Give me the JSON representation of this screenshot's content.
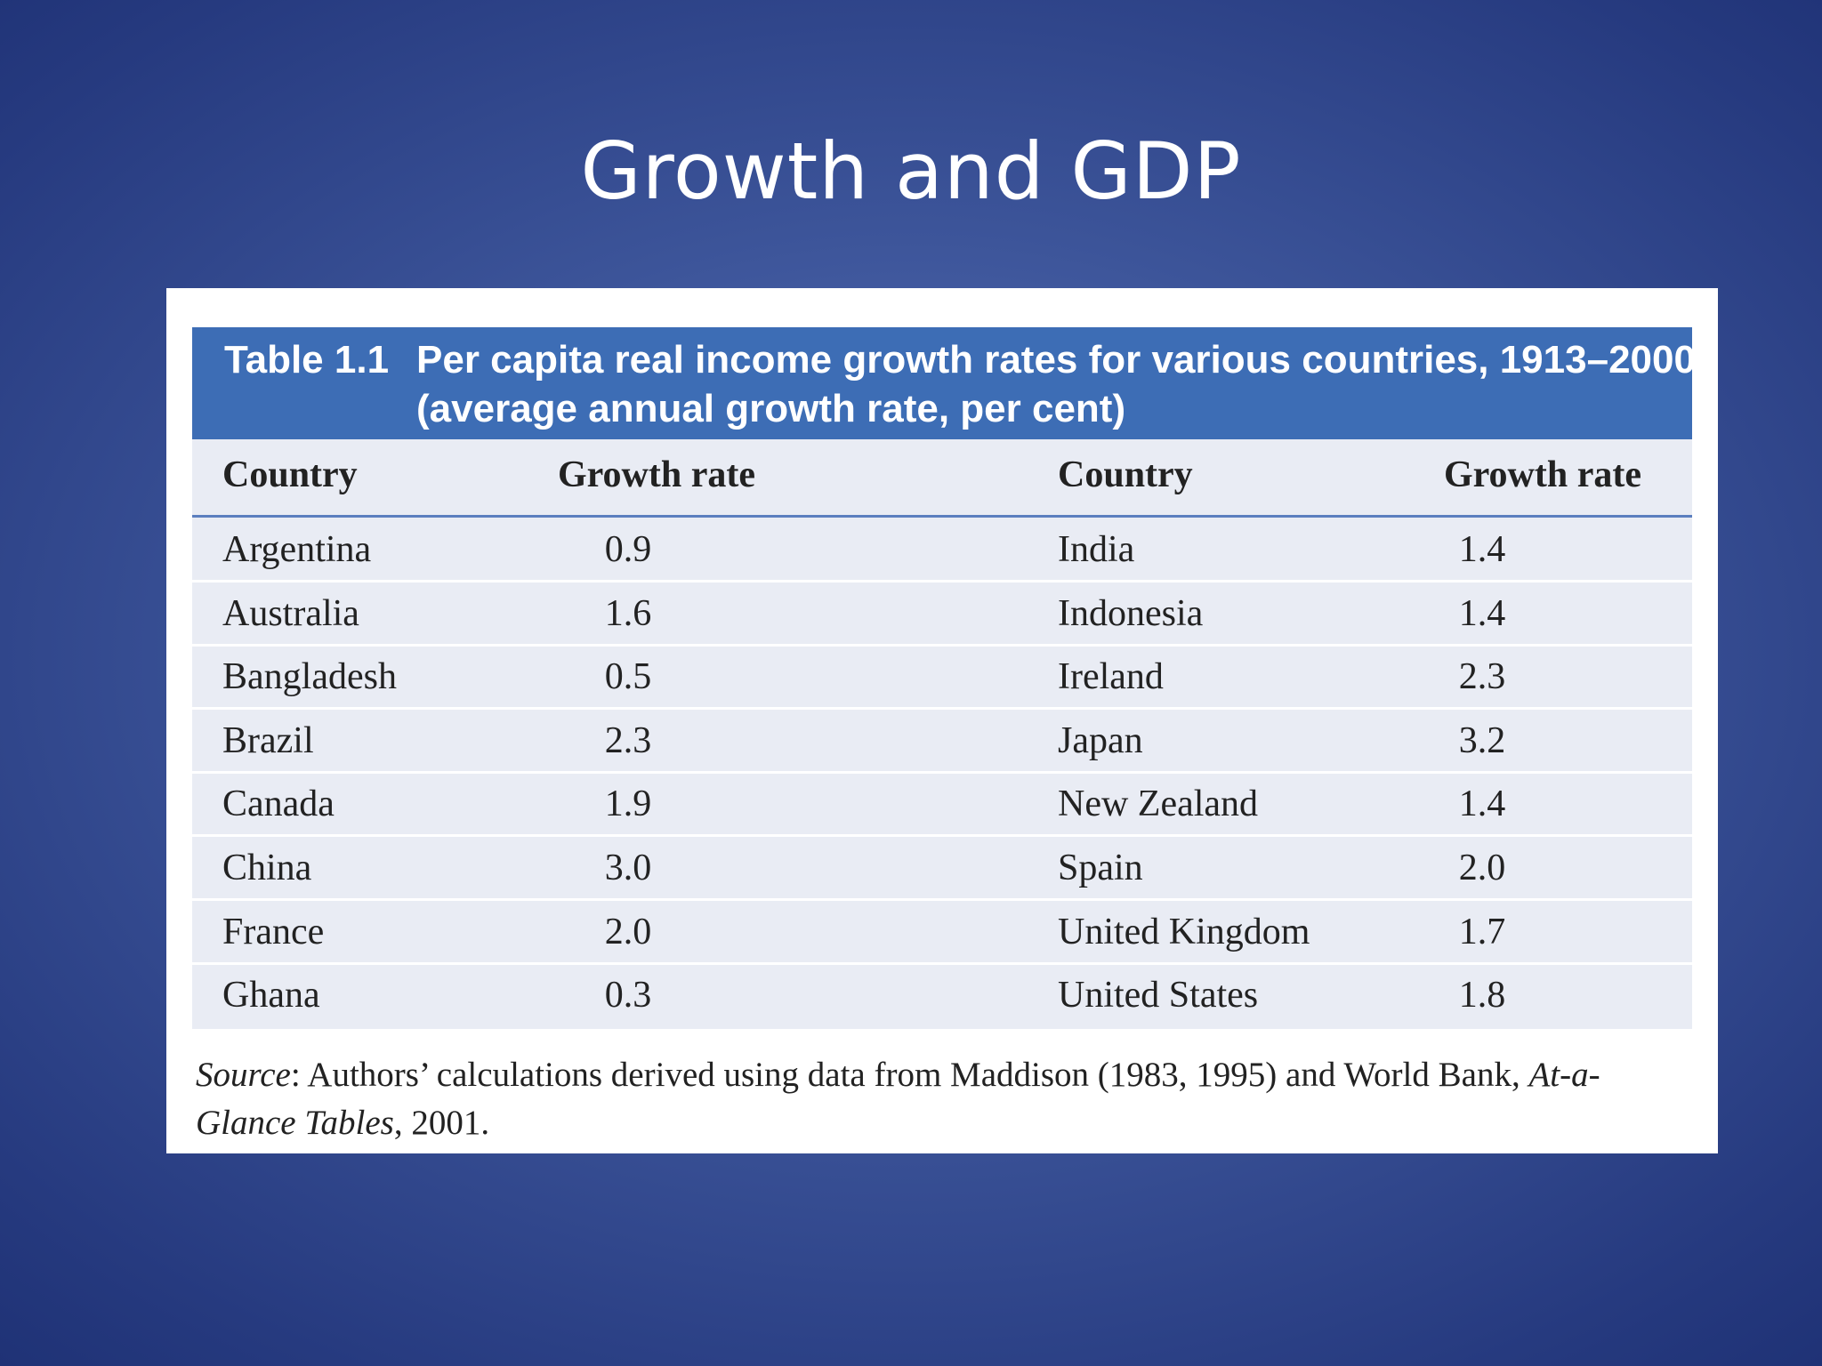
{
  "slide": {
    "title": "Growth and GDP"
  },
  "table": {
    "label": "Table 1.1",
    "caption_line1": "Per capita real income growth rates for various countries, 1913–2000",
    "caption_line2": "(average annual growth rate, per cent)",
    "headers": [
      "Country",
      "Growth rate",
      "Country",
      "Growth rate"
    ],
    "rows": [
      [
        "Argentina",
        "0.9",
        "India",
        "1.4"
      ],
      [
        "Australia",
        "1.6",
        "Indonesia",
        "1.4"
      ],
      [
        "Bangladesh",
        "0.5",
        "Ireland",
        "2.3"
      ],
      [
        "Brazil",
        "2.3",
        "Japan",
        "3.2"
      ],
      [
        "Canada",
        "1.9",
        "New Zealand",
        "1.4"
      ],
      [
        "China",
        "3.0",
        "Spain",
        "2.0"
      ],
      [
        "France",
        "2.0",
        "United Kingdom",
        "1.7"
      ],
      [
        "Ghana",
        "0.3",
        "United States",
        "1.8"
      ]
    ]
  },
  "source": {
    "label": "Source",
    "text_a": ": Authors’ calculations derived using data from Maddison (1983, 1995) and World Bank, ",
    "publication": "At-a-Glance Tables",
    "text_b": ", 2001."
  },
  "colors": {
    "background": "#3c5499",
    "caption_band": "#3d6db5",
    "table_fill": "#e9ecf4"
  }
}
